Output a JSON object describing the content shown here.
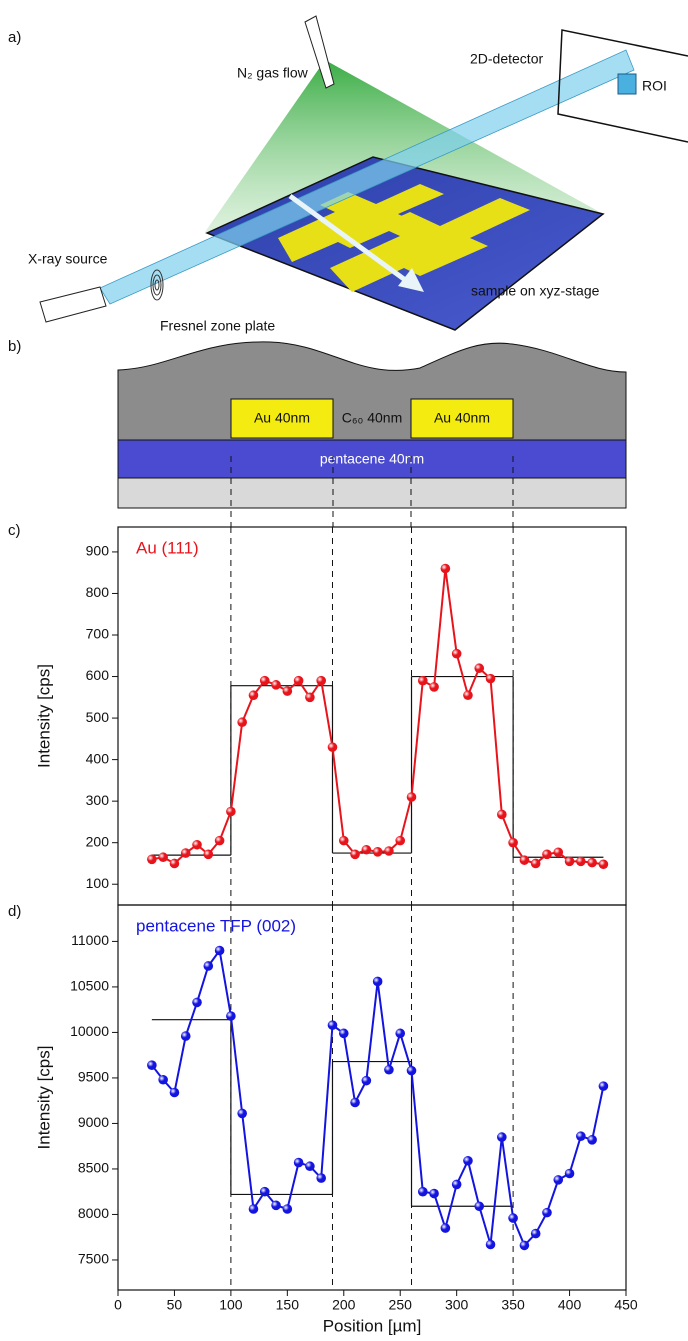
{
  "figure": {
    "panel_labels": [
      "a)",
      "b)",
      "c)",
      "d)"
    ],
    "diagram": {
      "gas": "N₂ gas flow",
      "detector": "2D-detector",
      "roi": "ROI",
      "source": "X-ray source",
      "zone_plate": "Fresnel zone plate",
      "sample": "sample on xyz-stage"
    },
    "cross_section": {
      "electrode_left": "Au 40nm",
      "overlayer": "C₆₀ 40nm",
      "electrode_right": "Au 40nm",
      "base_layer": "pentacene 40nm"
    }
  },
  "chart_data": [
    {
      "type": "line",
      "ylabel": "Intensity [cps]",
      "x": [
        30,
        40,
        50,
        60,
        70,
        80,
        90,
        100,
        110,
        120,
        130,
        140,
        150,
        160,
        170,
        180,
        190,
        200,
        210,
        220,
        230,
        240,
        250,
        260,
        270,
        280,
        290,
        300,
        310,
        320,
        330,
        340,
        350,
        360,
        370,
        380,
        390,
        400,
        410,
        420,
        430
      ],
      "series": [
        {
          "name": "Au (111)",
          "color": "#e8141c",
          "values": [
            160,
            165,
            150,
            175,
            195,
            172,
            205,
            275,
            490,
            555,
            590,
            580,
            565,
            590,
            550,
            590,
            430,
            205,
            172,
            183,
            178,
            180,
            205,
            310,
            590,
            575,
            860,
            655,
            555,
            620,
            595,
            268,
            200,
            158,
            150,
            172,
            177,
            155,
            155,
            152,
            148
          ]
        }
      ],
      "fit": {
        "bins": [
          30,
          100,
          190,
          260,
          350,
          430
        ],
        "values": [
          170,
          578,
          175,
          600,
          165
        ]
      },
      "vlines": [
        100,
        190,
        260,
        350
      ],
      "xlim": [
        0,
        450
      ],
      "ylim": [
        50,
        960
      ],
      "yticks": [
        100,
        200,
        300,
        400,
        500,
        600,
        700,
        800,
        900
      ]
    },
    {
      "type": "line",
      "ylabel": "Intensity [cps]",
      "xlabel": "Position [µm]",
      "x": [
        30,
        40,
        50,
        60,
        70,
        80,
        90,
        100,
        110,
        120,
        130,
        140,
        150,
        160,
        170,
        180,
        190,
        200,
        210,
        220,
        230,
        240,
        250,
        260,
        270,
        280,
        290,
        300,
        310,
        320,
        330,
        340,
        350,
        360,
        370,
        380,
        390,
        400,
        410,
        420,
        430
      ],
      "series": [
        {
          "name": "pentacene TFP (002)",
          "color": "#1414e0",
          "values": [
            9640,
            9480,
            9340,
            9960,
            10330,
            10730,
            10900,
            10180,
            9110,
            8060,
            8250,
            8100,
            8060,
            8570,
            8530,
            8400,
            10080,
            9990,
            9230,
            9470,
            10560,
            9590,
            9990,
            9580,
            8250,
            8230,
            7850,
            8330,
            8590,
            8090,
            7670,
            8850,
            7960,
            7660,
            7790,
            8020,
            8380,
            8450,
            8860,
            8820,
            9410
          ]
        }
      ],
      "fit": {
        "bins": [
          30,
          100,
          190,
          260,
          350
        ],
        "values": [
          10140,
          8220,
          9680,
          8090
        ]
      },
      "vlines": [
        100,
        190,
        260,
        350
      ],
      "xlim": [
        0,
        450
      ],
      "xticks": [
        0,
        50,
        100,
        150,
        200,
        250,
        300,
        350,
        400,
        450
      ],
      "ylim": [
        7170,
        11400
      ],
      "yticks": [
        7500,
        8000,
        8500,
        9000,
        9500,
        10000,
        10500,
        11000
      ]
    }
  ]
}
